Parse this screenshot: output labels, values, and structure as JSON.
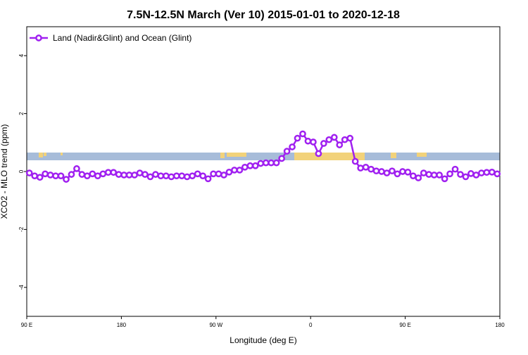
{
  "chart_data": {
    "type": "line",
    "title": "7.5N-12.5N March (Ver 10)   2015-01-01 to 2020-12-18",
    "x_label": "Longitude (deg E)",
    "y_label": "XCO2 - MLO trend (ppm)",
    "x": [
      92.5,
      97.5,
      102.5,
      107.5,
      112.5,
      117.5,
      122.5,
      127.5,
      132.5,
      137.5,
      142.5,
      147.5,
      152.5,
      157.5,
      162.5,
      167.5,
      172.5,
      177.5,
      182.5,
      187.5,
      192.5,
      197.5,
      202.5,
      207.5,
      212.5,
      217.5,
      222.5,
      227.5,
      232.5,
      237.5,
      242.5,
      247.5,
      252.5,
      257.5,
      262.5,
      267.5,
      272.5,
      277.5,
      282.5,
      287.5,
      292.5,
      297.5,
      302.5,
      307.5,
      312.5,
      317.5,
      322.5,
      327.5,
      332.5,
      337.5,
      342.5,
      347.5,
      352.5,
      357.5,
      362.5,
      367.5,
      372.5,
      377.5,
      382.5,
      387.5,
      392.5,
      397.5,
      402.5,
      407.5,
      412.5,
      417.5,
      422.5,
      427.5,
      432.5,
      437.5,
      442.5,
      447.5,
      452.5,
      457.5,
      462.5,
      467.5,
      472.5,
      477.5,
      482.5,
      487.5,
      492.5,
      497.5,
      502.5,
      507.5,
      512.5,
      517.5,
      522.5,
      527.5,
      532.5,
      537.5
    ],
    "series": [
      {
        "name": "Land (Nadir&Glint) and Ocean (Glint)",
        "color": "#a020f0",
        "values": [
          -0.05,
          -0.15,
          -0.2,
          -0.08,
          -0.12,
          -0.15,
          -0.15,
          -0.27,
          -0.1,
          0.1,
          -0.1,
          -0.15,
          -0.08,
          -0.15,
          -0.08,
          -0.03,
          -0.03,
          -0.1,
          -0.12,
          -0.12,
          -0.12,
          -0.05,
          -0.1,
          -0.18,
          -0.1,
          -0.15,
          -0.15,
          -0.18,
          -0.15,
          -0.15,
          -0.18,
          -0.15,
          -0.08,
          -0.15,
          -0.25,
          -0.08,
          -0.08,
          -0.12,
          -0.02,
          0.05,
          0.05,
          0.15,
          0.2,
          0.2,
          0.28,
          0.3,
          0.3,
          0.3,
          0.45,
          0.7,
          0.85,
          1.15,
          1.3,
          1.05,
          1.02,
          0.62,
          0.97,
          1.1,
          1.18,
          0.92,
          1.1,
          1.15,
          0.35,
          0.12,
          0.15,
          0.08,
          0.02,
          0,
          -0.05,
          0.02,
          -0.08,
          0,
          -0.02,
          -0.15,
          -0.22,
          -0.05,
          -0.1,
          -0.12,
          -0.12,
          -0.25,
          -0.08,
          0.08,
          -0.1,
          -0.18,
          -0.07,
          -0.12,
          -0.05,
          -0.03,
          -0.02,
          -0.08
        ]
      }
    ],
    "xlim": [
      90,
      540
    ],
    "xticks": [
      {
        "value": 90,
        "label": "90 E"
      },
      180,
      {
        "value": 270,
        "label": "90 W"
      },
      {
        "value": 360,
        "label": "0"
      },
      {
        "value": 450,
        "label": "90 E"
      },
      {
        "value": 540,
        "label": "180"
      }
    ],
    "ylim": [
      -5,
      5
    ],
    "yticks": [
      -4,
      -2,
      0,
      2,
      4
    ],
    "legend": "upper left"
  }
}
